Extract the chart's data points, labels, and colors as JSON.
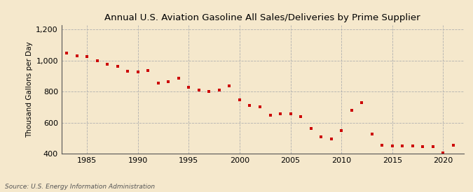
{
  "title": "Annual U.S. Aviation Gasoline All Sales/Deliveries by Prime Supplier",
  "ylabel": "Thousand Gallons per Day",
  "source": "Source: U.S. Energy Information Administration",
  "background_color": "#f5e8cc",
  "plot_bg_color": "#f5e8cc",
  "marker_color": "#cc0000",
  "marker": "s",
  "marker_size": 3.5,
  "xlim": [
    1982.5,
    2022
  ],
  "ylim": [
    400,
    1230
  ],
  "yticks": [
    400,
    600,
    800,
    1000,
    1200
  ],
  "ytick_labels": [
    "400",
    "600",
    "800",
    "1,000",
    "1,200"
  ],
  "xticks": [
    1985,
    1990,
    1995,
    2000,
    2005,
    2010,
    2015,
    2020
  ],
  "years": [
    1983,
    1984,
    1985,
    1986,
    1987,
    1988,
    1989,
    1990,
    1991,
    1992,
    1993,
    1994,
    1995,
    1996,
    1997,
    1998,
    1999,
    2000,
    2001,
    2002,
    2003,
    2004,
    2005,
    2006,
    2007,
    2008,
    2009,
    2010,
    2011,
    2012,
    2013,
    2014,
    2015,
    2016,
    2017,
    2018,
    2019,
    2020,
    2021
  ],
  "values": [
    1048,
    1030,
    1025,
    998,
    975,
    965,
    930,
    928,
    935,
    855,
    862,
    888,
    830,
    808,
    800,
    808,
    835,
    748,
    712,
    700,
    650,
    655,
    655,
    640,
    563,
    510,
    495,
    548,
    680,
    730,
    525,
    452,
    450,
    450,
    448,
    445,
    445,
    405,
    455
  ]
}
